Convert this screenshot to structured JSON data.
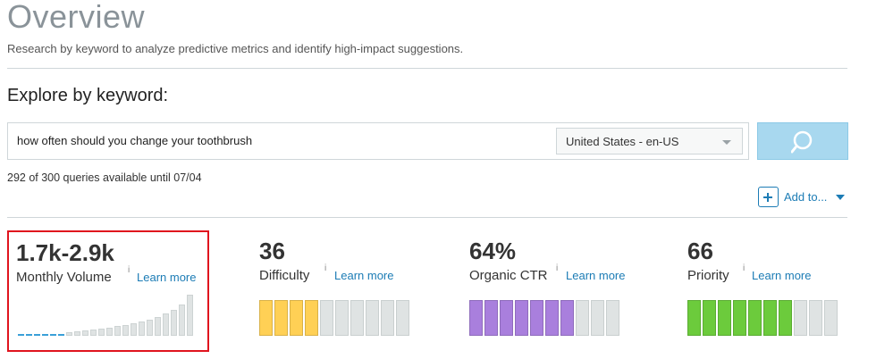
{
  "header": {
    "title": "Overview",
    "subtitle": "Research by keyword to analyze predictive metrics and identify high-impact suggestions."
  },
  "explore": {
    "heading": "Explore by keyword:",
    "keyword": "how often should you change your toothbrush",
    "locale": "United States - en-US",
    "quota": "292 of 300 queries available until 07/04",
    "add_to_label": "Add to..."
  },
  "colors": {
    "accent_blue": "#1c7cb5",
    "search_button": "#a8d8ef",
    "highlight_border": "#e0141e",
    "difficulty": "#ffd055",
    "ctr": "#a97fdd",
    "priority": "#6ccb3c",
    "bar_empty": "#dfe3e3"
  },
  "metrics": {
    "volume": {
      "value": "1.7k-2.9k",
      "label": "Monthly Volume",
      "info": "i",
      "learn_more": "Learn more"
    },
    "difficulty": {
      "value": "36",
      "label": "Difficulty",
      "info": "i",
      "learn_more": "Learn more",
      "filled": 4,
      "total": 10
    },
    "ctr": {
      "value": "64%",
      "label": "Organic CTR",
      "info": "i",
      "learn_more": "Learn more",
      "filled": 7,
      "total": 10
    },
    "priority": {
      "value": "66",
      "label": "Priority",
      "info": "i",
      "learn_more": "Learn more",
      "filled": 7,
      "total": 10
    }
  }
}
